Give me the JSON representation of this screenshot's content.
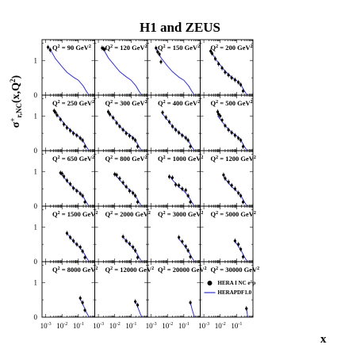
{
  "chart_data": {
    "type": "scatter",
    "title": "H1 and ZEUS",
    "ylabel": "σr,NC+(x,Q²)",
    "xlabel": "x",
    "xscale": "log",
    "xlim": [
      0.0006,
      1
    ],
    "ylim": [
      0,
      1.6
    ],
    "y_ticks": [
      "0",
      "1"
    ],
    "x_ticks": [
      "10-3",
      "10-2",
      "10-1"
    ],
    "legend": {
      "position": "bottom-right",
      "entries": [
        "HERA I NC e+p",
        "HERAPDF1.0"
      ]
    },
    "panels": [
      {
        "label": "Q2 = 90 GeV2",
        "q2": 90,
        "curve_x": [
          0.0013,
          0.002,
          0.004,
          0.01,
          0.02,
          0.05,
          0.1,
          0.2,
          0.3,
          0.45
        ],
        "curve_y": [
          1.42,
          1.3,
          1.05,
          0.82,
          0.66,
          0.52,
          0.43,
          0.26,
          0.12,
          0.0
        ],
        "points_x": [
          0.0014,
          0.0019
        ],
        "points_y": [
          1.38,
          1.3
        ]
      },
      {
        "label": "Q2 = 120 GeV2",
        "q2": 120,
        "curve_x": [
          0.0016,
          0.002,
          0.004,
          0.01,
          0.02,
          0.05,
          0.1,
          0.2,
          0.3,
          0.45
        ],
        "curve_y": [
          1.4,
          1.33,
          1.08,
          0.85,
          0.68,
          0.53,
          0.43,
          0.26,
          0.12,
          0.0
        ],
        "points_x": [
          0.0017,
          0.002,
          0.0024
        ],
        "points_y": [
          1.36,
          1.34,
          1.32
        ]
      },
      {
        "label": "Q2 = 150 GeV2",
        "q2": 150,
        "curve_x": [
          0.002,
          0.004,
          0.01,
          0.02,
          0.05,
          0.1,
          0.2,
          0.3,
          0.45
        ],
        "curve_y": [
          1.35,
          1.08,
          0.84,
          0.68,
          0.52,
          0.43,
          0.26,
          0.12,
          0.0
        ],
        "points_x": [
          0.002,
          0.0025,
          0.0032,
          0.004
        ],
        "points_y": [
          1.36,
          1.25,
          1.18,
          0.96
        ]
      },
      {
        "label": "Q2 = 200 GeV2",
        "q2": 200,
        "curve_x": [
          0.0026,
          0.005,
          0.01,
          0.02,
          0.05,
          0.1,
          0.2,
          0.3,
          0.45
        ],
        "curve_y": [
          1.3,
          1.05,
          0.87,
          0.69,
          0.52,
          0.42,
          0.27,
          0.12,
          0.0
        ],
        "points_x": [
          0.0026,
          0.0032,
          0.005,
          0.008,
          0.013,
          0.02,
          0.032,
          0.05,
          0.08,
          0.13,
          0.18,
          0.25
        ],
        "points_y": [
          1.27,
          1.2,
          1.05,
          0.9,
          0.78,
          0.66,
          0.58,
          0.5,
          0.44,
          0.37,
          0.3,
          0.12
        ]
      },
      {
        "label": "Q2 = 250 GeV2",
        "q2": 250,
        "curve_x": [
          0.0033,
          0.005,
          0.01,
          0.02,
          0.05,
          0.1,
          0.2,
          0.3,
          0.45
        ],
        "curve_y": [
          1.18,
          1.05,
          0.86,
          0.69,
          0.52,
          0.42,
          0.27,
          0.12,
          0.0
        ],
        "points_x": [
          0.0033,
          0.004,
          0.005,
          0.008,
          0.013,
          0.02,
          0.032,
          0.05,
          0.08,
          0.13,
          0.18,
          0.25
        ],
        "points_y": [
          1.15,
          1.1,
          1.02,
          0.9,
          0.76,
          0.66,
          0.58,
          0.5,
          0.44,
          0.36,
          0.3,
          0.12
        ]
      },
      {
        "label": "Q2 = 300 GeV2",
        "q2": 300,
        "curve_x": [
          0.004,
          0.008,
          0.013,
          0.02,
          0.05,
          0.1,
          0.2,
          0.3,
          0.45
        ],
        "curve_y": [
          1.12,
          0.94,
          0.82,
          0.7,
          0.53,
          0.43,
          0.27,
          0.12,
          0.0
        ],
        "points_x": [
          0.004,
          0.005,
          0.008,
          0.013,
          0.02,
          0.032,
          0.05,
          0.08,
          0.13,
          0.18,
          0.25
        ],
        "points_y": [
          1.12,
          1.05,
          0.95,
          0.8,
          0.7,
          0.6,
          0.5,
          0.43,
          0.36,
          0.3,
          0.12
        ]
      },
      {
        "label": "Q2 = 400 GeV2",
        "q2": 400,
        "curve_x": [
          0.005,
          0.008,
          0.013,
          0.02,
          0.05,
          0.1,
          0.2,
          0.3,
          0.45
        ],
        "curve_y": [
          1.06,
          0.94,
          0.82,
          0.7,
          0.52,
          0.42,
          0.27,
          0.12,
          0.0
        ],
        "points_x": [
          0.005,
          0.008,
          0.013,
          0.02,
          0.032,
          0.05,
          0.08,
          0.13,
          0.18,
          0.25
        ],
        "points_y": [
          1.1,
          0.96,
          0.83,
          0.7,
          0.6,
          0.52,
          0.44,
          0.37,
          0.3,
          0.12
        ]
      },
      {
        "label": "Q2 = 500 GeV2",
        "q2": 500,
        "curve_x": [
          0.007,
          0.013,
          0.02,
          0.05,
          0.1,
          0.2,
          0.3,
          0.45
        ],
        "curve_y": [
          1.0,
          0.84,
          0.72,
          0.53,
          0.43,
          0.27,
          0.12,
          0.0
        ],
        "points_x": [
          0.007,
          0.008,
          0.01,
          0.013,
          0.02,
          0.032,
          0.05,
          0.08,
          0.13,
          0.18,
          0.25
        ],
        "points_y": [
          1.12,
          1.05,
          1.0,
          0.88,
          0.72,
          0.6,
          0.52,
          0.44,
          0.36,
          0.3,
          0.12
        ]
      },
      {
        "label": "Q2 = 650 GeV2",
        "q2": 650,
        "curve_x": [
          0.008,
          0.013,
          0.02,
          0.05,
          0.1,
          0.2,
          0.3,
          0.45
        ],
        "curve_y": [
          0.95,
          0.84,
          0.72,
          0.53,
          0.43,
          0.27,
          0.12,
          0.0
        ],
        "points_x": [
          0.008,
          0.01,
          0.013,
          0.02,
          0.032,
          0.05,
          0.08,
          0.13,
          0.18,
          0.25
        ],
        "points_y": [
          0.96,
          0.94,
          0.86,
          0.74,
          0.64,
          0.52,
          0.44,
          0.36,
          0.3,
          0.12
        ]
      },
      {
        "label": "Q2 = 800 GeV2",
        "q2": 800,
        "curve_x": [
          0.01,
          0.02,
          0.05,
          0.1,
          0.2,
          0.3,
          0.45
        ],
        "curve_y": [
          0.92,
          0.76,
          0.55,
          0.44,
          0.27,
          0.12,
          0.0
        ],
        "points_x": [
          0.01,
          0.013,
          0.02,
          0.032,
          0.05,
          0.08,
          0.13,
          0.18,
          0.25
        ],
        "points_y": [
          0.92,
          0.9,
          0.8,
          0.68,
          0.56,
          0.44,
          0.38,
          0.3,
          0.12
        ]
      },
      {
        "label": "Q2 = 1000 GeV2",
        "q2": 1000,
        "curve_x": [
          0.013,
          0.02,
          0.05,
          0.1,
          0.2,
          0.3,
          0.45
        ],
        "curve_y": [
          0.88,
          0.76,
          0.55,
          0.44,
          0.27,
          0.12,
          0.0
        ],
        "points_x": [
          0.013,
          0.02,
          0.032,
          0.05,
          0.08,
          0.13,
          0.18,
          0.25
        ],
        "points_y": [
          0.85,
          0.82,
          0.62,
          0.6,
          0.5,
          0.46,
          0.3,
          0.12
        ]
      },
      {
        "label": "Q2 = 1200 GeV2",
        "q2": 1200,
        "curve_x": [
          0.016,
          0.02,
          0.05,
          0.1,
          0.2,
          0.3,
          0.45
        ],
        "curve_y": [
          0.86,
          0.79,
          0.56,
          0.44,
          0.27,
          0.12,
          0.0
        ],
        "points_x": [
          0.016,
          0.02,
          0.032,
          0.05,
          0.08,
          0.13,
          0.18,
          0.25
        ],
        "points_y": [
          0.9,
          0.8,
          0.7,
          0.6,
          0.5,
          0.38,
          0.3,
          0.12
        ]
      },
      {
        "label": "Q2 = 1500 GeV2",
        "q2": 1500,
        "curve_x": [
          0.02,
          0.05,
          0.1,
          0.2,
          0.3,
          0.45
        ],
        "curve_y": [
          0.82,
          0.58,
          0.45,
          0.28,
          0.13,
          0.0
        ],
        "points_x": [
          0.02,
          0.032,
          0.05,
          0.08,
          0.13,
          0.18,
          0.25
        ],
        "points_y": [
          0.82,
          0.7,
          0.6,
          0.5,
          0.42,
          0.3,
          0.12
        ]
      },
      {
        "label": "Q2 = 2000 GeV2",
        "q2": 2000,
        "curve_x": [
          0.032,
          0.05,
          0.1,
          0.2,
          0.3,
          0.45
        ],
        "curve_y": [
          0.72,
          0.6,
          0.45,
          0.28,
          0.13,
          0.0
        ],
        "points_x": [
          0.032,
          0.05,
          0.08,
          0.13,
          0.18,
          0.25
        ],
        "points_y": [
          0.72,
          0.6,
          0.52,
          0.42,
          0.32,
          0.12
        ]
      },
      {
        "label": "Q2 = 3000 GeV2",
        "q2": 3000,
        "curve_x": [
          0.05,
          0.1,
          0.2,
          0.3,
          0.45
        ],
        "curve_y": [
          0.66,
          0.48,
          0.29,
          0.13,
          0.0
        ],
        "points_x": [
          0.05,
          0.08,
          0.13,
          0.18,
          0.25
        ],
        "points_y": [
          0.7,
          0.58,
          0.44,
          0.32,
          0.14
        ]
      },
      {
        "label": "Q2 = 5000 GeV2",
        "q2": 5000,
        "curve_x": [
          0.08,
          0.1,
          0.2,
          0.3,
          0.45
        ],
        "curve_y": [
          0.58,
          0.52,
          0.3,
          0.14,
          0.0
        ],
        "points_x": [
          0.08,
          0.13,
          0.18,
          0.25
        ],
        "points_y": [
          0.6,
          0.5,
          0.36,
          0.14
        ]
      },
      {
        "label": "Q2 = 8000 GeV2",
        "q2": 8000,
        "curve_x": [
          0.13,
          0.2,
          0.3,
          0.45
        ],
        "curve_y": [
          0.52,
          0.34,
          0.15,
          0.0
        ],
        "points_x": [
          0.13,
          0.18,
          0.25
        ],
        "points_y": [
          0.55,
          0.42,
          0.2
        ]
      },
      {
        "label": "Q2 = 12000 GeV2",
        "q2": 12000,
        "curve_x": [
          0.18,
          0.25,
          0.35,
          0.45
        ],
        "curve_y": [
          0.46,
          0.3,
          0.12,
          0.0
        ],
        "points_x": [
          0.18,
          0.25
        ],
        "points_y": [
          0.45,
          0.35
        ]
      },
      {
        "label": "Q2 = 20000 GeV2",
        "q2": 20000,
        "curve_x": [
          0.25,
          0.32,
          0.45
        ],
        "curve_y": [
          0.42,
          0.22,
          0.0
        ],
        "points_x": [
          0.25
        ],
        "points_y": [
          0.42
        ]
      },
      {
        "label": "Q2 = 30000 GeV2",
        "q2": 30000,
        "curve_x": [
          0.4,
          0.48
        ],
        "curve_y": [
          0.28,
          0.0
        ],
        "points_x": [
          0.4
        ],
        "points_y": [
          0.25
        ]
      }
    ]
  },
  "colors": {
    "curve": "#3333cc",
    "points": "#000000",
    "frame": "#000000"
  }
}
